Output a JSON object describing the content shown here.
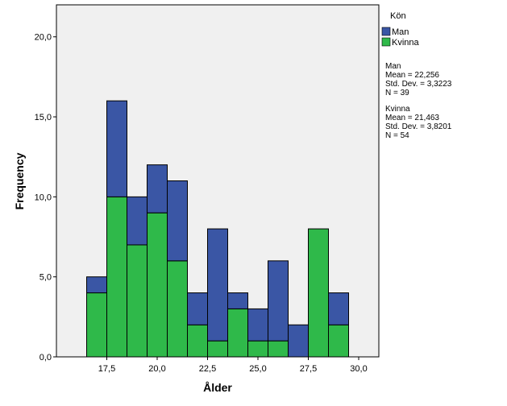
{
  "chart_data": {
    "type": "bar",
    "stacked": true,
    "xlabel": "Ålder",
    "ylabel": "Frequency",
    "xlim": [
      15,
      31
    ],
    "ylim": [
      0,
      22
    ],
    "bin_width": 1,
    "xticks": [
      17.5,
      20.0,
      22.5,
      25.0,
      27.5,
      30.0
    ],
    "xtick_labels": [
      "17,5",
      "20,0",
      "22,5",
      "25,0",
      "27,5",
      "30,0"
    ],
    "yticks": [
      0,
      5,
      10,
      15,
      20
    ],
    "ytick_labels": [
      "0,0",
      "5,0",
      "10,0",
      "15,0",
      "20,0"
    ],
    "bin_starts": [
      16.5,
      17.5,
      18.5,
      19.5,
      20.5,
      21.5,
      22.5,
      23.5,
      24.5,
      25.5,
      26.5,
      27.5,
      28.5
    ],
    "series": [
      {
        "name": "Kvinna",
        "color": "#2fb94a",
        "values": [
          4,
          10,
          7,
          9,
          6,
          2,
          1,
          3,
          1,
          1,
          0,
          8,
          2
        ]
      },
      {
        "name": "Man",
        "color": "#3a56a5",
        "values": [
          1,
          6,
          3,
          3,
          5,
          2,
          7,
          1,
          2,
          5,
          2,
          0,
          2
        ]
      }
    ],
    "legend": {
      "title": "Kön",
      "placement": "right",
      "items": [
        {
          "label": "Man",
          "color": "#3a56a5"
        },
        {
          "label": "Kvinna",
          "color": "#2fb94a"
        }
      ]
    },
    "stats": [
      {
        "name": "Man",
        "mean": "Mean = 22,256",
        "sd": "Std. Dev. = 3,3223",
        "n": "N = 39"
      },
      {
        "name": "Kvinna",
        "mean": "Mean = 21,463",
        "sd": "Std. Dev. = 3,8201",
        "n": "N = 54"
      }
    ],
    "plot_background": "#f0f0f0",
    "grid": false
  }
}
